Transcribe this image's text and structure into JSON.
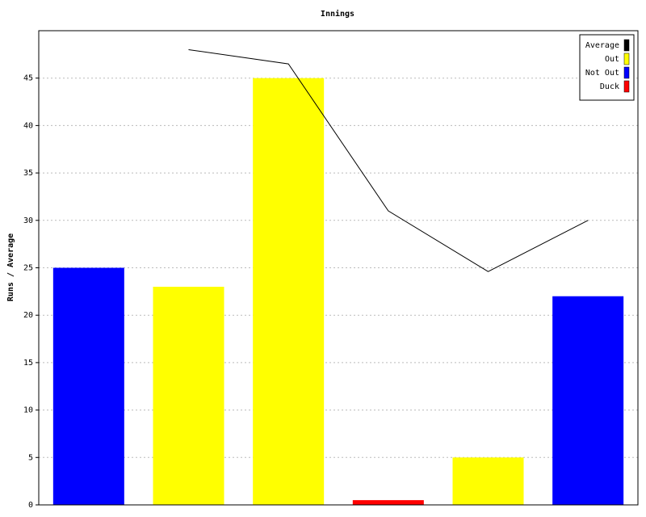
{
  "chart_data": {
    "type": "bar",
    "title": "Innings",
    "y_label": "Runs / Average",
    "categories": [
      null,
      null,
      null,
      null,
      null,
      null
    ],
    "series": [
      {
        "name": "Average",
        "color": "#000000",
        "type": "line",
        "values": [
          null,
          48,
          46.5,
          31,
          24.6,
          30
        ]
      },
      {
        "name": "Out",
        "color": "#ffff00",
        "type": "bar",
        "values": [
          null,
          23,
          45,
          null,
          5,
          null
        ]
      },
      {
        "name": "Not Out",
        "color": "#0000ff",
        "type": "bar",
        "values": [
          25,
          null,
          null,
          null,
          null,
          22
        ]
      },
      {
        "name": "Duck",
        "color": "#ff0000",
        "type": "bar",
        "values": [
          null,
          null,
          null,
          0.5,
          null,
          null
        ]
      }
    ],
    "ylim": [
      0,
      50
    ],
    "yticks": [
      0,
      5,
      10,
      15,
      20,
      25,
      30,
      35,
      40,
      45
    ],
    "grid": true,
    "legend": "top-right"
  }
}
